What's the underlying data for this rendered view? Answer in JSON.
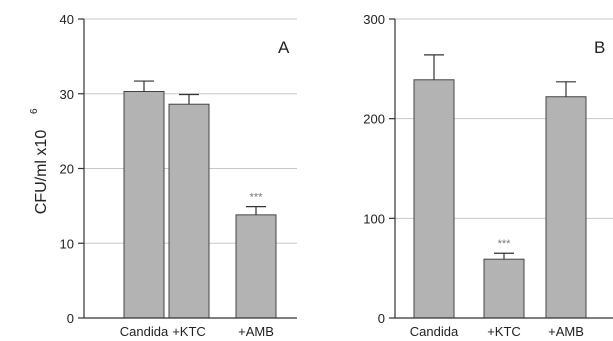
{
  "chart_data": [
    {
      "type": "bar",
      "panel_letter": "A",
      "categories": [
        "Candida",
        "+KTC",
        "+AMB"
      ],
      "values": [
        30.3,
        28.6,
        13.8
      ],
      "errors": [
        1.4,
        1.3,
        1.1
      ],
      "significance": [
        "",
        "",
        "***"
      ],
      "ylim": [
        0,
        40
      ],
      "yticks": [
        "0",
        "10",
        "20",
        "30",
        "40"
      ],
      "ylabel": "CFU/ml x10",
      "ylabel_superscript": "6",
      "grid": true,
      "bar_color": "#b3b3b3",
      "grid_color": "#c8c8c8"
    },
    {
      "type": "bar",
      "panel_letter": "B",
      "categories": [
        "Candida",
        "+KTC",
        "+AMB"
      ],
      "values": [
        239,
        59,
        222
      ],
      "errors": [
        25,
        6,
        15
      ],
      "significance": [
        "",
        "***",
        ""
      ],
      "ylim": [
        0,
        300
      ],
      "yticks": [
        "0",
        "100",
        "200",
        "300"
      ],
      "grid": true,
      "bar_color": "#b3b3b3",
      "grid_color": "#c8c8c8"
    }
  ]
}
